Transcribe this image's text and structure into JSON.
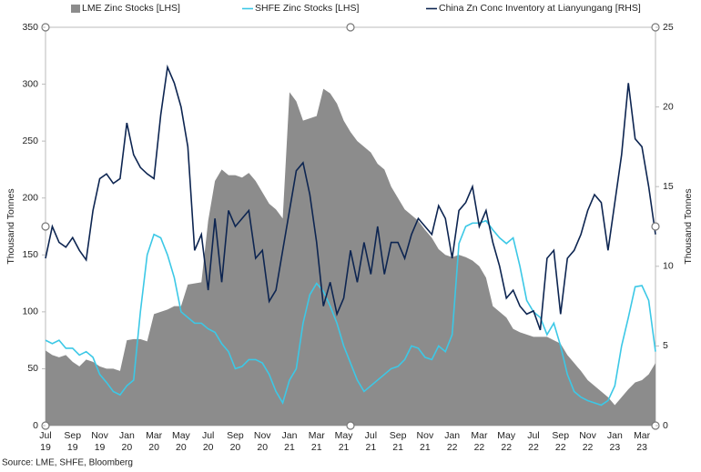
{
  "chart_data": {
    "type": "combo",
    "y_label": "Thousand Tonnes",
    "y2_label": "Thousand Tonnes",
    "source": "Source: LME, SHFE, Bloomberg",
    "legend": "top",
    "categories": [
      "Jul\n19",
      null,
      null,
      null,
      "Sep\n19",
      null,
      null,
      null,
      "Nov\n19",
      null,
      null,
      null,
      "Jan\n20",
      null,
      null,
      null,
      "Mar\n20",
      null,
      null,
      null,
      "May\n20",
      null,
      null,
      null,
      "Jul\n20",
      null,
      null,
      null,
      "Sep\n20",
      null,
      null,
      null,
      "Nov\n20",
      null,
      null,
      null,
      "Jan\n21",
      null,
      null,
      null,
      "Mar\n21",
      null,
      null,
      null,
      "May\n21",
      null,
      null,
      null,
      "Jul\n21",
      null,
      null,
      null,
      "Sep\n21",
      null,
      null,
      null,
      "Nov\n21",
      null,
      null,
      null,
      "Jan\n22",
      null,
      null,
      null,
      "Mar\n22",
      null,
      null,
      null,
      "May\n22",
      null,
      null,
      null,
      "Jul\n22",
      null,
      null,
      null,
      "Sep\n22",
      null,
      null,
      null,
      "Nov\n22",
      null,
      null,
      null,
      "Jan\n23",
      null,
      null,
      null,
      "Mar\n23",
      null,
      null
    ],
    "series": [
      {
        "name": "LME Zinc Stocks [LHS]",
        "kind": "area",
        "color": "#8c8c8c",
        "axis": "y",
        "values": [
          66,
          62,
          60,
          62,
          56,
          52,
          58,
          56,
          52,
          50,
          50,
          48,
          75,
          76,
          76,
          74,
          98,
          100,
          102,
          105,
          105,
          124,
          125,
          126,
          180,
          215,
          225,
          220,
          220,
          218,
          222,
          215,
          205,
          195,
          190,
          182,
          293,
          285,
          268,
          270,
          272,
          296,
          292,
          283,
          268,
          258,
          250,
          245,
          240,
          230,
          225,
          210,
          200,
          190,
          185,
          180,
          172,
          165,
          155,
          150,
          148,
          150,
          148,
          145,
          140,
          130,
          105,
          100,
          95,
          85,
          82,
          80,
          78,
          78,
          78,
          75,
          72,
          62,
          55,
          48,
          40,
          35,
          30,
          25,
          18,
          25,
          32,
          38,
          40,
          45,
          55
        ]
      },
      {
        "name": "SHFE Zinc Stocks [LHS]",
        "kind": "line",
        "color": "#3cc8e6",
        "axis": "y",
        "values": [
          75,
          72,
          75,
          68,
          68,
          62,
          65,
          60,
          45,
          38,
          30,
          27,
          35,
          40,
          100,
          150,
          168,
          165,
          150,
          130,
          100,
          95,
          90,
          90,
          85,
          82,
          72,
          65,
          50,
          52,
          58,
          58,
          55,
          45,
          30,
          20,
          40,
          50,
          90,
          115,
          125,
          118,
          105,
          90,
          70,
          55,
          40,
          30,
          35,
          40,
          45,
          50,
          52,
          58,
          70,
          68,
          60,
          58,
          70,
          65,
          80,
          160,
          175,
          178,
          178,
          180,
          172,
          165,
          160,
          165,
          140,
          110,
          100,
          95,
          80,
          90,
          70,
          45,
          30,
          25,
          22,
          20,
          18,
          22,
          35,
          70,
          95,
          122,
          123,
          110,
          65
        ]
      },
      {
        "name": "China Zn Conc Inventory at Lianyungang [RHS]",
        "kind": "line",
        "color": "#0d2551",
        "axis": "y2",
        "values": [
          10.5,
          12.5,
          11.5,
          11.2,
          11.8,
          11.0,
          10.4,
          13.5,
          15.5,
          15.8,
          15.2,
          15.5,
          19.0,
          17.0,
          16.2,
          15.8,
          15.5,
          19.5,
          22.5,
          21.5,
          20.0,
          17.5,
          11.0,
          12.0,
          8.5,
          13.0,
          9.0,
          13.5,
          12.5,
          13.0,
          13.5,
          10.5,
          11.0,
          7.8,
          8.5,
          11.0,
          13.5,
          16.0,
          16.5,
          14.5,
          11.5,
          7.5,
          9.0,
          7.0,
          8.0,
          11.0,
          9.0,
          11.5,
          9.5,
          12.5,
          9.5,
          11.5,
          11.5,
          10.5,
          12.0,
          13.0,
          12.5,
          12.0,
          13.8,
          13.0,
          10.5,
          13.5,
          14.0,
          15.0,
          12.5,
          13.5,
          11.5,
          10.0,
          8.0,
          8.5,
          7.5,
          7.0,
          7.2,
          6.0,
          10.5,
          11.0,
          7.0,
          10.5,
          11.0,
          12.0,
          13.5,
          14.5,
          14.0,
          11.0,
          14.0,
          17.0,
          21.5,
          18.0,
          17.5,
          15.0,
          12.0
        ]
      }
    ],
    "ylim": [
      0,
      350
    ],
    "yticks": [
      0,
      50,
      100,
      150,
      200,
      250,
      300,
      350
    ],
    "y2lim": [
      0,
      25
    ],
    "y2ticks": [
      0,
      5,
      10,
      15,
      20,
      25
    ],
    "grid": false
  }
}
